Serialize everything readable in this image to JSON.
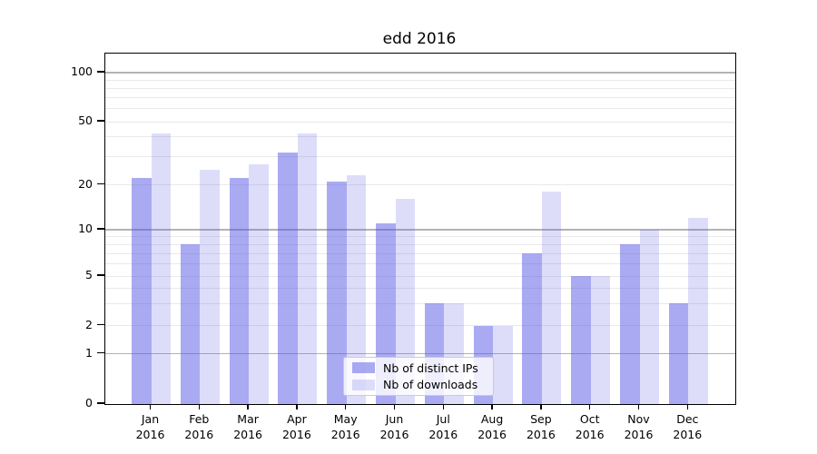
{
  "chart_data": {
    "type": "bar",
    "title": "edd 2016",
    "categories": [
      "Jan",
      "Feb",
      "Mar",
      "Apr",
      "May",
      "Jun",
      "Jul",
      "Aug",
      "Sep",
      "Oct",
      "Nov",
      "Dec"
    ],
    "year": "2016",
    "series": [
      {
        "name": "Nb of distinct IPs",
        "color": "rgba(85,85,230,0.5)",
        "values": [
          22,
          8,
          22,
          32,
          21,
          11,
          3,
          2,
          7,
          5,
          8,
          3
        ]
      },
      {
        "name": "Nb of downloads",
        "color": "rgba(85,85,230,0.2)",
        "values": [
          42,
          25,
          27,
          42,
          23,
          16,
          3,
          2,
          18,
          5,
          10,
          12
        ]
      }
    ],
    "y_axis": {
      "scale": "log-like",
      "ticks": [
        0,
        1,
        2,
        5,
        10,
        20,
        50,
        100
      ],
      "major_gridlines": [
        1,
        10,
        100
      ],
      "minor_gridlines": [
        2,
        3,
        4,
        5,
        6,
        7,
        8,
        9,
        20,
        30,
        40,
        50,
        60,
        70,
        80,
        90
      ]
    },
    "legend": {
      "position": "lower-center"
    },
    "colors": {
      "axis_text": "#000000",
      "major_grid": "#b3b3b3",
      "minor_grid": "#e9e9e9",
      "background": "#ffffff"
    }
  }
}
